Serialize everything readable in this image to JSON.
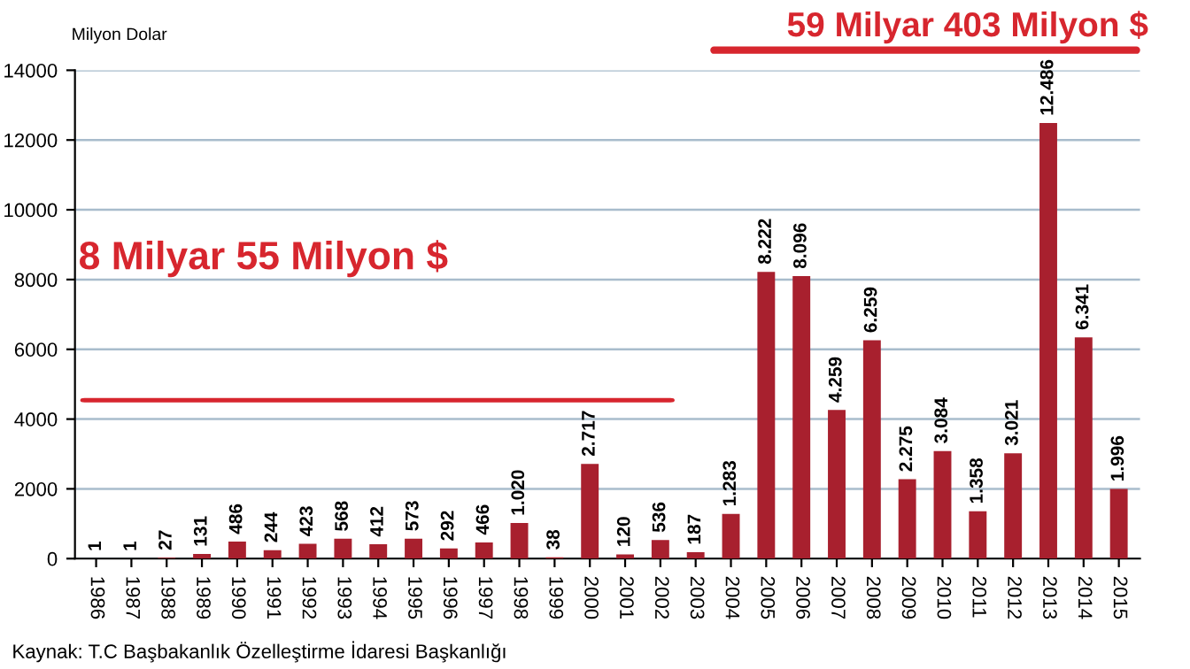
{
  "chart_data": {
    "type": "bar",
    "ylabel": "Milyon Dolar",
    "categories": [
      "1986",
      "1987",
      "1988",
      "1989",
      "1990",
      "1991",
      "1992",
      "1993",
      "1994",
      "1995",
      "1996",
      "1997",
      "1998",
      "1999",
      "2000",
      "2001",
      "2002",
      "2003",
      "2004",
      "2005",
      "2006",
      "2007",
      "2008",
      "2009",
      "2010",
      "2011",
      "2012",
      "2013",
      "2014",
      "2015"
    ],
    "values": [
      1,
      1,
      27,
      131,
      486,
      244,
      423,
      568,
      412,
      573,
      292,
      466,
      1020,
      38,
      2717,
      120,
      536,
      187,
      1283,
      8222,
      8096,
      4259,
      6259,
      2275,
      3084,
      1358,
      3021,
      12486,
      6341,
      1996
    ],
    "value_labels": [
      "1",
      "1",
      "27",
      "131",
      "486",
      "244",
      "423",
      "568",
      "412",
      "573",
      "292",
      "466",
      "1.020",
      "38",
      "2.717",
      "120",
      "536",
      "187",
      "1.283",
      "8.222",
      "8.096",
      "4.259",
      "6.259",
      "2.275",
      "3.084",
      "1.358",
      "3.021",
      "12.486",
      "6.341",
      "1.996"
    ],
    "color": "#a8202e",
    "ylim": [
      0,
      14000
    ],
    "yticks": [
      0,
      2000,
      4000,
      6000,
      8000,
      10000,
      12000,
      14000
    ],
    "grid": "y",
    "annotations": [
      "8 Milyar 55 Milyon $",
      "59 Milyar 403 Milyon $",
      "Kaynak: T.C Başbakanlık Özelleştirme İdaresi Başkanlığı"
    ]
  }
}
